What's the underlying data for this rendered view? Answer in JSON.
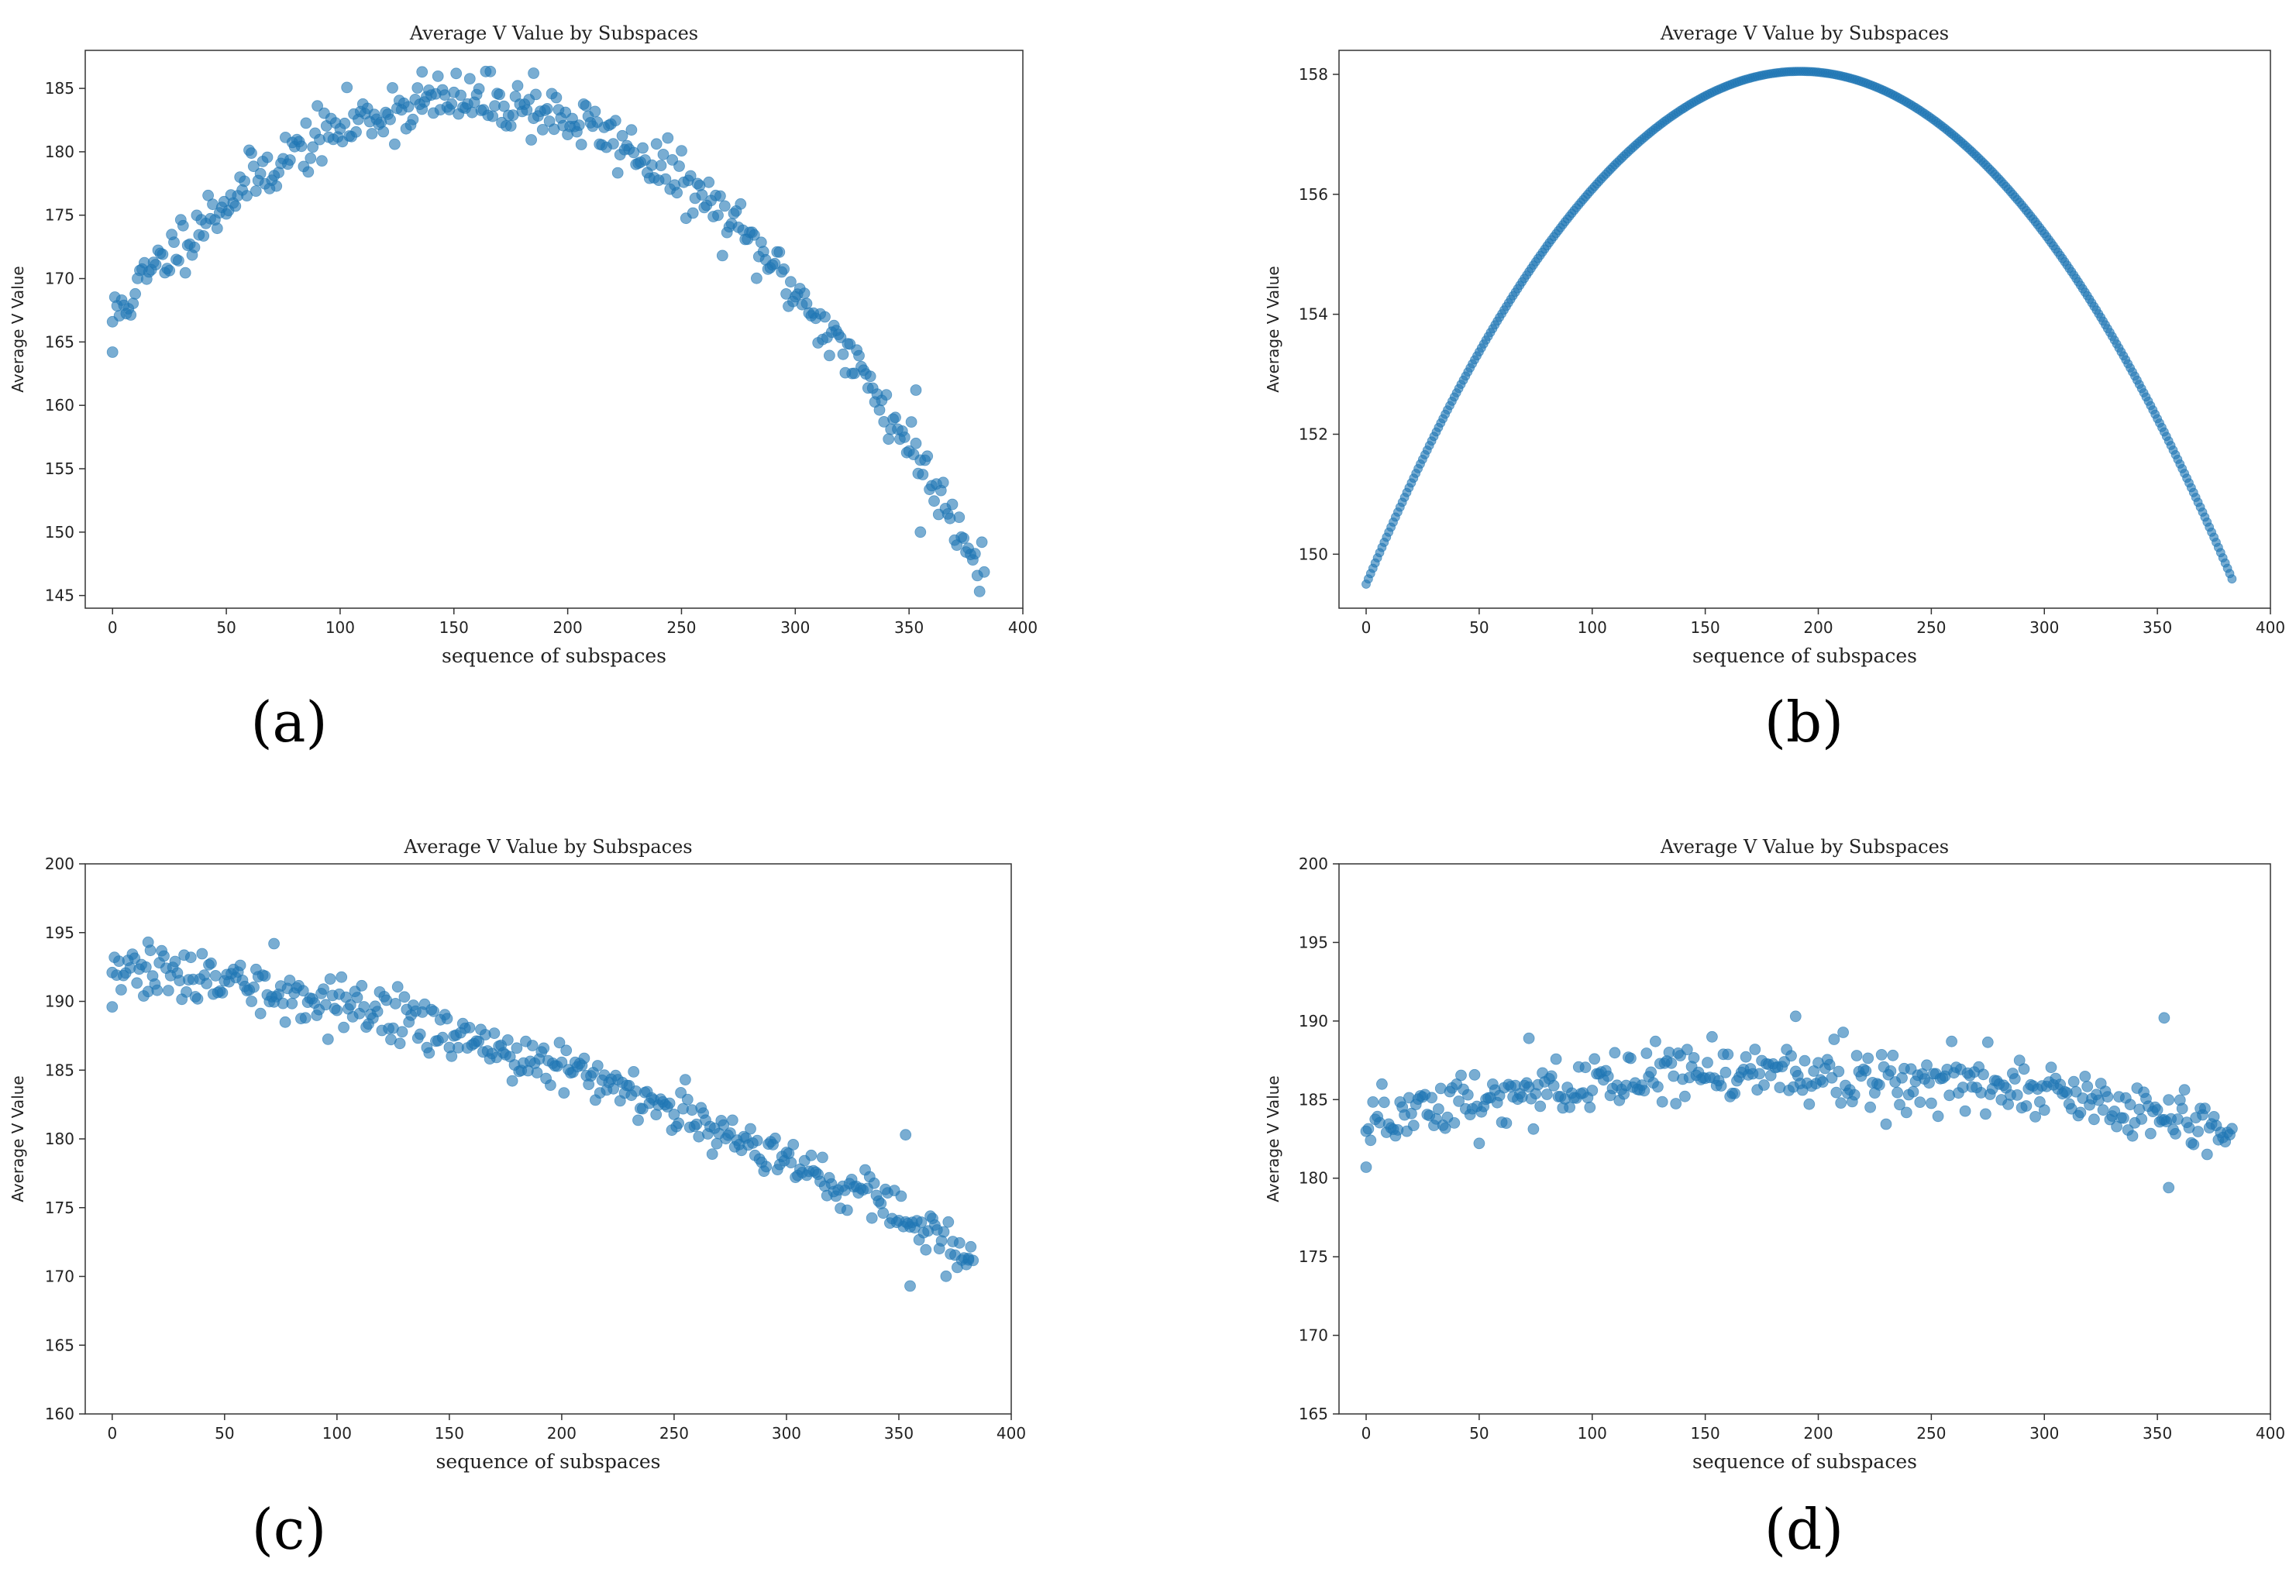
{
  "figure_labels": [
    "(a)",
    "(b)",
    "(c)",
    "(d)"
  ],
  "colors": {
    "marker": "#1f77b4",
    "axis": "#333333",
    "text": "#222222"
  },
  "chart_data": [
    {
      "id": "a",
      "type": "scatter",
      "title": "Average V Value by Subspaces",
      "xlabel": "sequence of subspaces",
      "ylabel": "Average V Value",
      "xlim": [
        -12,
        400
      ],
      "ylim": [
        144,
        188
      ],
      "xticks": [
        0,
        50,
        100,
        150,
        200,
        250,
        300,
        350,
        400
      ],
      "yticks": [
        145,
        150,
        155,
        160,
        165,
        170,
        175,
        180,
        185
      ],
      "model": {
        "kind": "parabola",
        "peak_x": 155,
        "peak_y": 184,
        "end_y": 147,
        "n": 384,
        "noise": 1.1,
        "seed": 11
      },
      "outliers": [
        [
          0,
          164.2
        ],
        [
          353,
          161.2
        ],
        [
          355,
          150.0
        ],
        [
          136,
          186.3
        ],
        [
          185,
          186.2
        ]
      ]
    },
    {
      "id": "b",
      "type": "scatter",
      "title": "Average V Value by Subspaces",
      "xlabel": "sequence of subspaces",
      "ylabel": "Average V Value",
      "xlim": [
        -12,
        400
      ],
      "ylim": [
        149.1,
        158.4
      ],
      "xticks": [
        0,
        50,
        100,
        150,
        200,
        250,
        300,
        350,
        400
      ],
      "yticks": [
        150,
        152,
        154,
        156,
        158
      ],
      "model": {
        "kind": "parabola",
        "peak_x": 192,
        "peak_y": 158.05,
        "start_y": 149.5,
        "n": 384,
        "noise": 0,
        "seed": 2
      },
      "outliers": []
    },
    {
      "id": "c",
      "type": "scatter",
      "title": "Average V Value by Subspaces",
      "xlabel": "sequence of subspaces",
      "ylabel": "Average V Value",
      "xlim": [
        -12,
        400
      ],
      "ylim": [
        160,
        200
      ],
      "xticks": [
        0,
        50,
        100,
        150,
        200,
        250,
        300,
        350,
        400
      ],
      "yticks": [
        160,
        165,
        170,
        175,
        180,
        185,
        190,
        195,
        200
      ],
      "model": {
        "kind": "quadratic",
        "a0": 192.3,
        "a1": -0.0155,
        "a2": -0.0001,
        "n": 384,
        "noise": 0.9,
        "seed": 33
      },
      "outliers": [
        [
          0,
          189.6
        ],
        [
          16,
          194.3
        ],
        [
          72,
          194.2
        ],
        [
          353,
          180.3
        ],
        [
          355,
          169.3
        ],
        [
          381,
          171.2
        ]
      ]
    },
    {
      "id": "d",
      "type": "scatter",
      "title": "Average V Value by Subspaces",
      "xlabel": "sequence of subspaces",
      "ylabel": "Average V Value",
      "xlim": [
        -12,
        400
      ],
      "ylim": [
        165,
        200
      ],
      "xticks": [
        0,
        50,
        100,
        150,
        200,
        250,
        300,
        350,
        400
      ],
      "yticks": [
        165,
        170,
        175,
        180,
        185,
        190,
        195,
        200
      ],
      "model": {
        "kind": "parabola",
        "peak_x": 185,
        "peak_y": 186.8,
        "start_y": 183.2,
        "n": 384,
        "noise": 1.05,
        "seed": 44
      },
      "outliers": [
        [
          0,
          180.7
        ],
        [
          353,
          190.2
        ],
        [
          355,
          179.4
        ],
        [
          190,
          190.3
        ],
        [
          72,
          188.9
        ]
      ]
    }
  ]
}
